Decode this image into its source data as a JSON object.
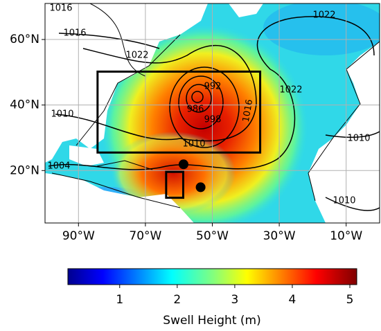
{
  "map": {
    "lon_axis": {
      "lim": [
        -100,
        0
      ],
      "ticks": [
        {
          "value": -90,
          "label": "90°W"
        },
        {
          "value": -70,
          "label": "70°W"
        },
        {
          "value": -50,
          "label": "50°W"
        },
        {
          "value": -30,
          "label": "30°W"
        },
        {
          "value": -10,
          "label": "10°W"
        }
      ]
    },
    "lat_axis": {
      "lim": [
        4,
        71
      ],
      "ticks": [
        {
          "value": 20,
          "label": "20°N"
        },
        {
          "value": 40,
          "label": "40°N"
        },
        {
          "value": 60,
          "label": "60°N"
        }
      ]
    },
    "grid": true,
    "contour_labels": [
      "1016",
      "1016",
      "1022",
      "1022",
      "1022",
      "1010",
      "1010",
      "1010",
      "1010",
      "1004",
      "992",
      "986",
      "998",
      "1016"
    ],
    "boxes": [
      {
        "lon": [
          -84.3,
          -35.7
        ],
        "lat": [
          25.5,
          50.2
        ]
      },
      {
        "lon": [
          -63.8,
          -58.7
        ],
        "lat": [
          11.7,
          19.6
        ]
      }
    ],
    "points": [
      {
        "lon": -58.6,
        "lat": 21.9
      },
      {
        "lon": -53.5,
        "lat": 14.9
      }
    ]
  },
  "colorbar": {
    "label": "Swell Height (m)",
    "lim": [
      0.1,
      5.12
    ],
    "ticks": [
      1,
      2,
      3,
      4,
      5
    ]
  }
}
